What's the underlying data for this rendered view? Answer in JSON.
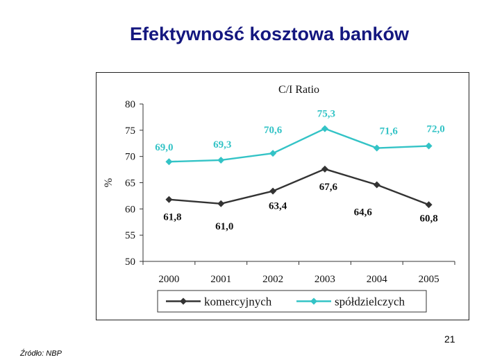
{
  "slide": {
    "title": "Efektywność kosztowa banków",
    "page_number": "21",
    "source": "Źródło: NBP"
  },
  "chart_data": {
    "type": "line",
    "title": "C/I Ratio",
    "ylabel": "%",
    "xlabel": "",
    "categories": [
      "2000",
      "2001",
      "2002",
      "2003",
      "2004",
      "2005"
    ],
    "ylim": [
      50,
      80
    ],
    "yticks": [
      50,
      55,
      60,
      65,
      70,
      75,
      80
    ],
    "grid": false,
    "legend": "bottom",
    "series": [
      {
        "name": "komercyjnych",
        "values": [
          61.8,
          61.0,
          63.4,
          67.6,
          64.6,
          60.8
        ],
        "labels": [
          "61,8",
          "61,0",
          "63,4",
          "67,6",
          "64,6",
          "60,8"
        ],
        "color": "#333333",
        "marker": "diamond"
      },
      {
        "name": "spółdzielczych",
        "values": [
          69.0,
          69.3,
          70.6,
          75.3,
          71.6,
          72.0
        ],
        "labels": [
          "69,0",
          "69,3",
          "70,6",
          "75,3",
          "71,6",
          "72,0"
        ],
        "color": "#33c3c6",
        "marker": "diamond"
      }
    ]
  }
}
